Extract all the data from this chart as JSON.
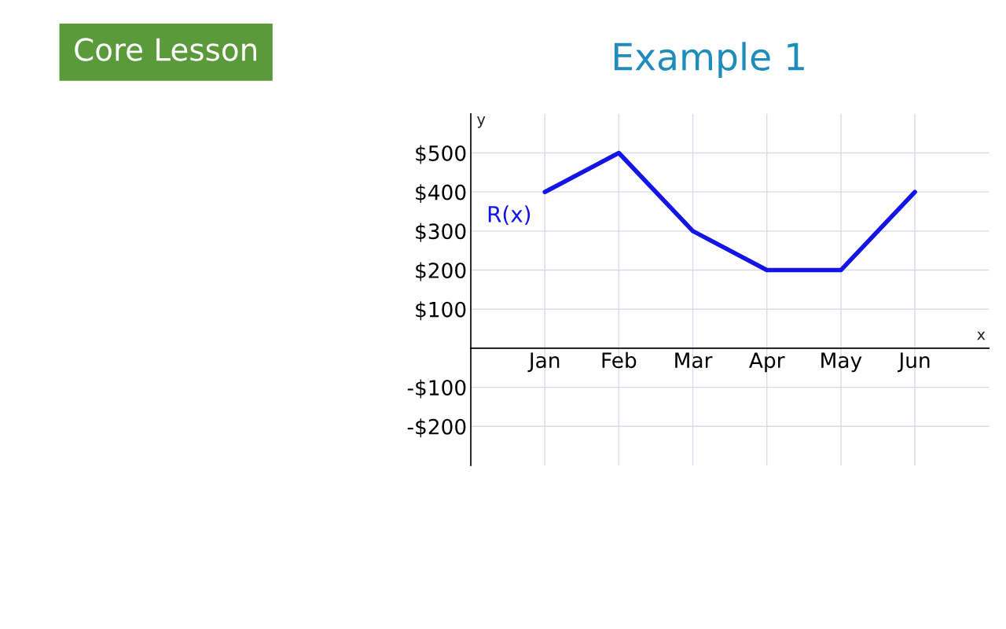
{
  "chart_data": {
    "type": "line",
    "title": "Example 1",
    "xlabel": "x",
    "ylabel": "y",
    "categories": [
      "Jan",
      "Feb",
      "Mar",
      "Apr",
      "May",
      "Jun"
    ],
    "series": [
      {
        "name": "R(x)",
        "color": "#1414e6",
        "values": [
          400,
          500,
          300,
          200,
          200,
          400
        ]
      }
    ],
    "ylim": [
      -300,
      600
    ],
    "yticks": [
      {
        "value": -200,
        "label": "-$200"
      },
      {
        "value": -100,
        "label": "-$100"
      },
      {
        "value": 100,
        "label": "$100"
      },
      {
        "value": 200,
        "label": "$200"
      },
      {
        "value": 300,
        "label": "$300"
      },
      {
        "value": 400,
        "label": "$400"
      },
      {
        "value": 500,
        "label": "$500"
      }
    ],
    "grid": true,
    "marker": "none",
    "line_style": "solid",
    "annotations": [
      "Core Lesson"
    ]
  }
}
